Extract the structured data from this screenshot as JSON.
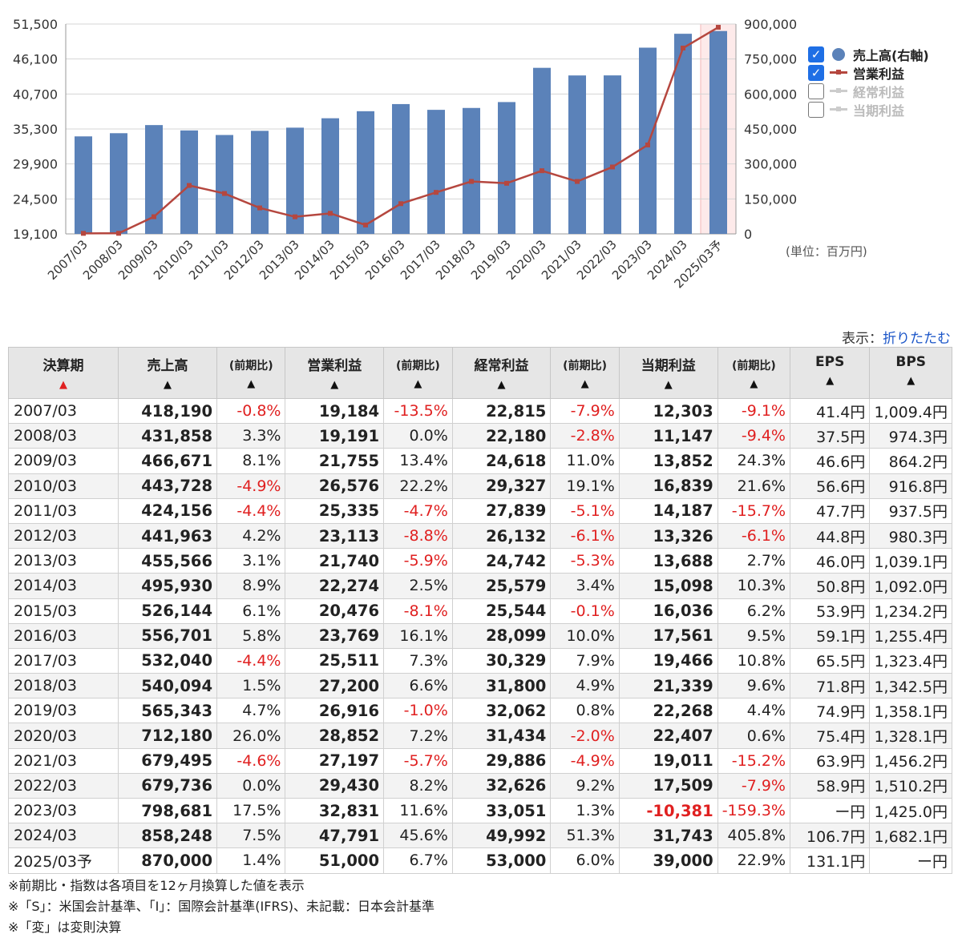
{
  "chart_data": {
    "type": "bar",
    "categories": [
      "2007/03",
      "2008/03",
      "2009/03",
      "2010/03",
      "2011/03",
      "2012/03",
      "2013/03",
      "2014/03",
      "2015/03",
      "2016/03",
      "2017/03",
      "2018/03",
      "2019/03",
      "2020/03",
      "2021/03",
      "2022/03",
      "2023/03",
      "2024/03",
      "2025/03予"
    ],
    "series": [
      {
        "name": "売上高(右軸)",
        "type": "bar",
        "axis": "right",
        "color": "#5b82b9",
        "values": [
          418190,
          431858,
          466671,
          443728,
          424156,
          441963,
          455566,
          495930,
          526144,
          556701,
          532040,
          540094,
          565343,
          712180,
          679495,
          679736,
          798681,
          858248,
          870000
        ]
      },
      {
        "name": "営業利益",
        "type": "line",
        "axis": "left",
        "color": "#b5473f",
        "values": [
          19184,
          19191,
          21755,
          26576,
          25335,
          23113,
          21740,
          22274,
          20476,
          23769,
          25511,
          27200,
          26916,
          28852,
          27197,
          29430,
          32831,
          47791,
          51000
        ]
      }
    ],
    "left_axis": {
      "ticks": [
        "51,500",
        "46,100",
        "40,700",
        "35,300",
        "29,900",
        "24,500",
        "19,100"
      ],
      "ylim": [
        19100,
        51500
      ]
    },
    "right_axis": {
      "ticks": [
        "900,000",
        "750,000",
        "600,000",
        "450,000",
        "300,000",
        "150,000",
        "0"
      ],
      "ylim": [
        0,
        900000
      ]
    },
    "grid": true,
    "forecast_highlight": "2025/03予"
  },
  "legend": [
    {
      "label": "売上高(右軸)",
      "checked": true,
      "symbol": "dot",
      "color": "#5b82b9"
    },
    {
      "label": "営業利益",
      "checked": true,
      "symbol": "line",
      "color": "#b5473f"
    },
    {
      "label": "経常利益",
      "checked": false,
      "symbol": "line",
      "color": "#cccccc"
    },
    {
      "label": "当期利益",
      "checked": false,
      "symbol": "line",
      "color": "#cccccc"
    }
  ],
  "unit_label": "(単位：百万円)",
  "display": {
    "prefix": "表示：",
    "link": "折りたたむ"
  },
  "table": {
    "headers": [
      "決算期",
      "売上高",
      "(前期比)",
      "営業利益",
      "(前期比)",
      "経常利益",
      "(前期比)",
      "当期利益",
      "(前期比)",
      "EPS",
      "BPS"
    ],
    "rows": [
      [
        "2007/03",
        "418,190",
        "-0.8%",
        "19,184",
        "-13.5%",
        "22,815",
        "-7.9%",
        "12,303",
        "-9.1%",
        "41.4円",
        "1,009.4円"
      ],
      [
        "2008/03",
        "431,858",
        "3.3%",
        "19,191",
        "0.0%",
        "22,180",
        "-2.8%",
        "11,147",
        "-9.4%",
        "37.5円",
        "974.3円"
      ],
      [
        "2009/03",
        "466,671",
        "8.1%",
        "21,755",
        "13.4%",
        "24,618",
        "11.0%",
        "13,852",
        "24.3%",
        "46.6円",
        "864.2円"
      ],
      [
        "2010/03",
        "443,728",
        "-4.9%",
        "26,576",
        "22.2%",
        "29,327",
        "19.1%",
        "16,839",
        "21.6%",
        "56.6円",
        "916.8円"
      ],
      [
        "2011/03",
        "424,156",
        "-4.4%",
        "25,335",
        "-4.7%",
        "27,839",
        "-5.1%",
        "14,187",
        "-15.7%",
        "47.7円",
        "937.5円"
      ],
      [
        "2012/03",
        "441,963",
        "4.2%",
        "23,113",
        "-8.8%",
        "26,132",
        "-6.1%",
        "13,326",
        "-6.1%",
        "44.8円",
        "980.3円"
      ],
      [
        "2013/03",
        "455,566",
        "3.1%",
        "21,740",
        "-5.9%",
        "24,742",
        "-5.3%",
        "13,688",
        "2.7%",
        "46.0円",
        "1,039.1円"
      ],
      [
        "2014/03",
        "495,930",
        "8.9%",
        "22,274",
        "2.5%",
        "25,579",
        "3.4%",
        "15,098",
        "10.3%",
        "50.8円",
        "1,092.0円"
      ],
      [
        "2015/03",
        "526,144",
        "6.1%",
        "20,476",
        "-8.1%",
        "25,544",
        "-0.1%",
        "16,036",
        "6.2%",
        "53.9円",
        "1,234.2円"
      ],
      [
        "2016/03",
        "556,701",
        "5.8%",
        "23,769",
        "16.1%",
        "28,099",
        "10.0%",
        "17,561",
        "9.5%",
        "59.1円",
        "1,255.4円"
      ],
      [
        "2017/03",
        "532,040",
        "-4.4%",
        "25,511",
        "7.3%",
        "30,329",
        "7.9%",
        "19,466",
        "10.8%",
        "65.5円",
        "1,323.4円"
      ],
      [
        "2018/03",
        "540,094",
        "1.5%",
        "27,200",
        "6.6%",
        "31,800",
        "4.9%",
        "21,339",
        "9.6%",
        "71.8円",
        "1,342.5円"
      ],
      [
        "2019/03",
        "565,343",
        "4.7%",
        "26,916",
        "-1.0%",
        "32,062",
        "0.8%",
        "22,268",
        "4.4%",
        "74.9円",
        "1,358.1円"
      ],
      [
        "2020/03",
        "712,180",
        "26.0%",
        "28,852",
        "7.2%",
        "31,434",
        "-2.0%",
        "22,407",
        "0.6%",
        "75.4円",
        "1,328.1円"
      ],
      [
        "2021/03",
        "679,495",
        "-4.6%",
        "27,197",
        "-5.7%",
        "29,886",
        "-4.9%",
        "19,011",
        "-15.2%",
        "63.9円",
        "1,456.2円"
      ],
      [
        "2022/03",
        "679,736",
        "0.0%",
        "29,430",
        "8.2%",
        "32,626",
        "9.2%",
        "17,509",
        "-7.9%",
        "58.9円",
        "1,510.2円"
      ],
      [
        "2023/03",
        "798,681",
        "17.5%",
        "32,831",
        "11.6%",
        "33,051",
        "1.3%",
        "-10,381",
        "-159.3%",
        "ー円",
        "1,425.0円"
      ],
      [
        "2024/03",
        "858,248",
        "7.5%",
        "47,791",
        "45.6%",
        "49,992",
        "51.3%",
        "31,743",
        "405.8%",
        "106.7円",
        "1,682.1円"
      ],
      [
        "2025/03予",
        "870,000",
        "1.4%",
        "51,000",
        "6.7%",
        "53,000",
        "6.0%",
        "39,000",
        "22.9%",
        "131.1円",
        "ー円"
      ]
    ]
  },
  "notes": [
    "※前期比・指数は各項目を12ヶ月換算した値を表示",
    "※「S」：米国会計基準、「I」：国際会計基準(IFRS)、未記載：日本会計基準",
    "※「変」は変則決算"
  ]
}
